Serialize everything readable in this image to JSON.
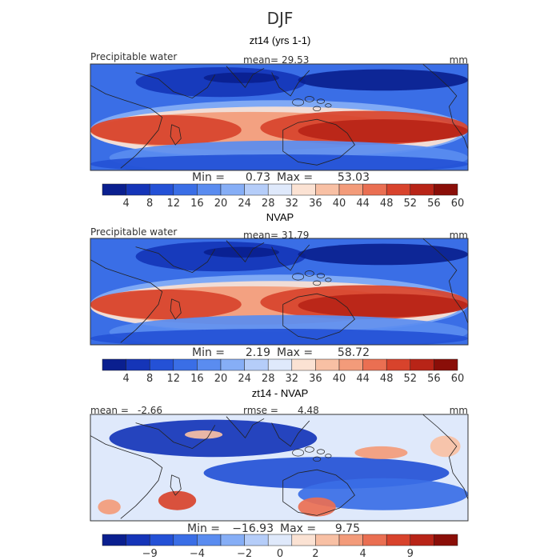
{
  "figure": {
    "season": "DJF"
  },
  "chart_data": [
    {
      "type": "heatmap",
      "title": "zt14 (yrs 1-1)",
      "variable": "Precipitable water",
      "units": "mm",
      "mean_label": "mean=",
      "mean_value": "29.53",
      "min_label": "Min =",
      "min_value": "0.73",
      "max_label": "Max =",
      "max_value": "53.03",
      "colorbar_ticks": [
        "4",
        "8",
        "12",
        "16",
        "20",
        "24",
        "28",
        "32",
        "36",
        "40",
        "44",
        "48",
        "52",
        "56",
        "60"
      ],
      "colors": [
        "#0a1f8f",
        "#1535b8",
        "#2451d6",
        "#3a6ee6",
        "#5a8cf0",
        "#86aef6",
        "#b5cdf9",
        "#dfe9fb",
        "#fbe2d3",
        "#f8c0a4",
        "#f39b7a",
        "#ea6f52",
        "#d8432c",
        "#b82417",
        "#8a0e08"
      ]
    },
    {
      "type": "heatmap",
      "title": "NVAP",
      "variable": "Precipitable water",
      "units": "mm",
      "mean_label": "mean=",
      "mean_value": "31.79",
      "min_label": "Min =",
      "min_value": "2.19",
      "max_label": "Max =",
      "max_value": "58.72",
      "colorbar_ticks": [
        "4",
        "8",
        "12",
        "16",
        "20",
        "24",
        "28",
        "32",
        "36",
        "40",
        "44",
        "48",
        "52",
        "56",
        "60"
      ],
      "colors": [
        "#0a1f8f",
        "#1535b8",
        "#2451d6",
        "#3a6ee6",
        "#5a8cf0",
        "#86aef6",
        "#b5cdf9",
        "#dfe9fb",
        "#fbe2d3",
        "#f8c0a4",
        "#f39b7a",
        "#ea6f52",
        "#d8432c",
        "#b82417",
        "#8a0e08"
      ]
    },
    {
      "type": "heatmap",
      "title": "zt14 - NVAP",
      "units": "mm",
      "mean_label": "mean =",
      "mean_value": "-2.66",
      "rmse_label": "rmse =",
      "rmse_value": "4.48",
      "min_label": "Min =",
      "min_value": "−16.93",
      "max_label": "Max =",
      "max_value": "9.75",
      "colorbar_ticks": [
        "−9",
        "−4",
        "−2",
        "0",
        "2",
        "4",
        "9"
      ],
      "colors": [
        "#0a1f8f",
        "#1535b8",
        "#2451d6",
        "#3a6ee6",
        "#5a8cf0",
        "#86aef6",
        "#b5cdf9",
        "#dfe9fb",
        "#fbe2d3",
        "#f8c0a4",
        "#f39b7a",
        "#ea6f52",
        "#d8432c",
        "#b82417",
        "#8a0e08"
      ]
    }
  ]
}
